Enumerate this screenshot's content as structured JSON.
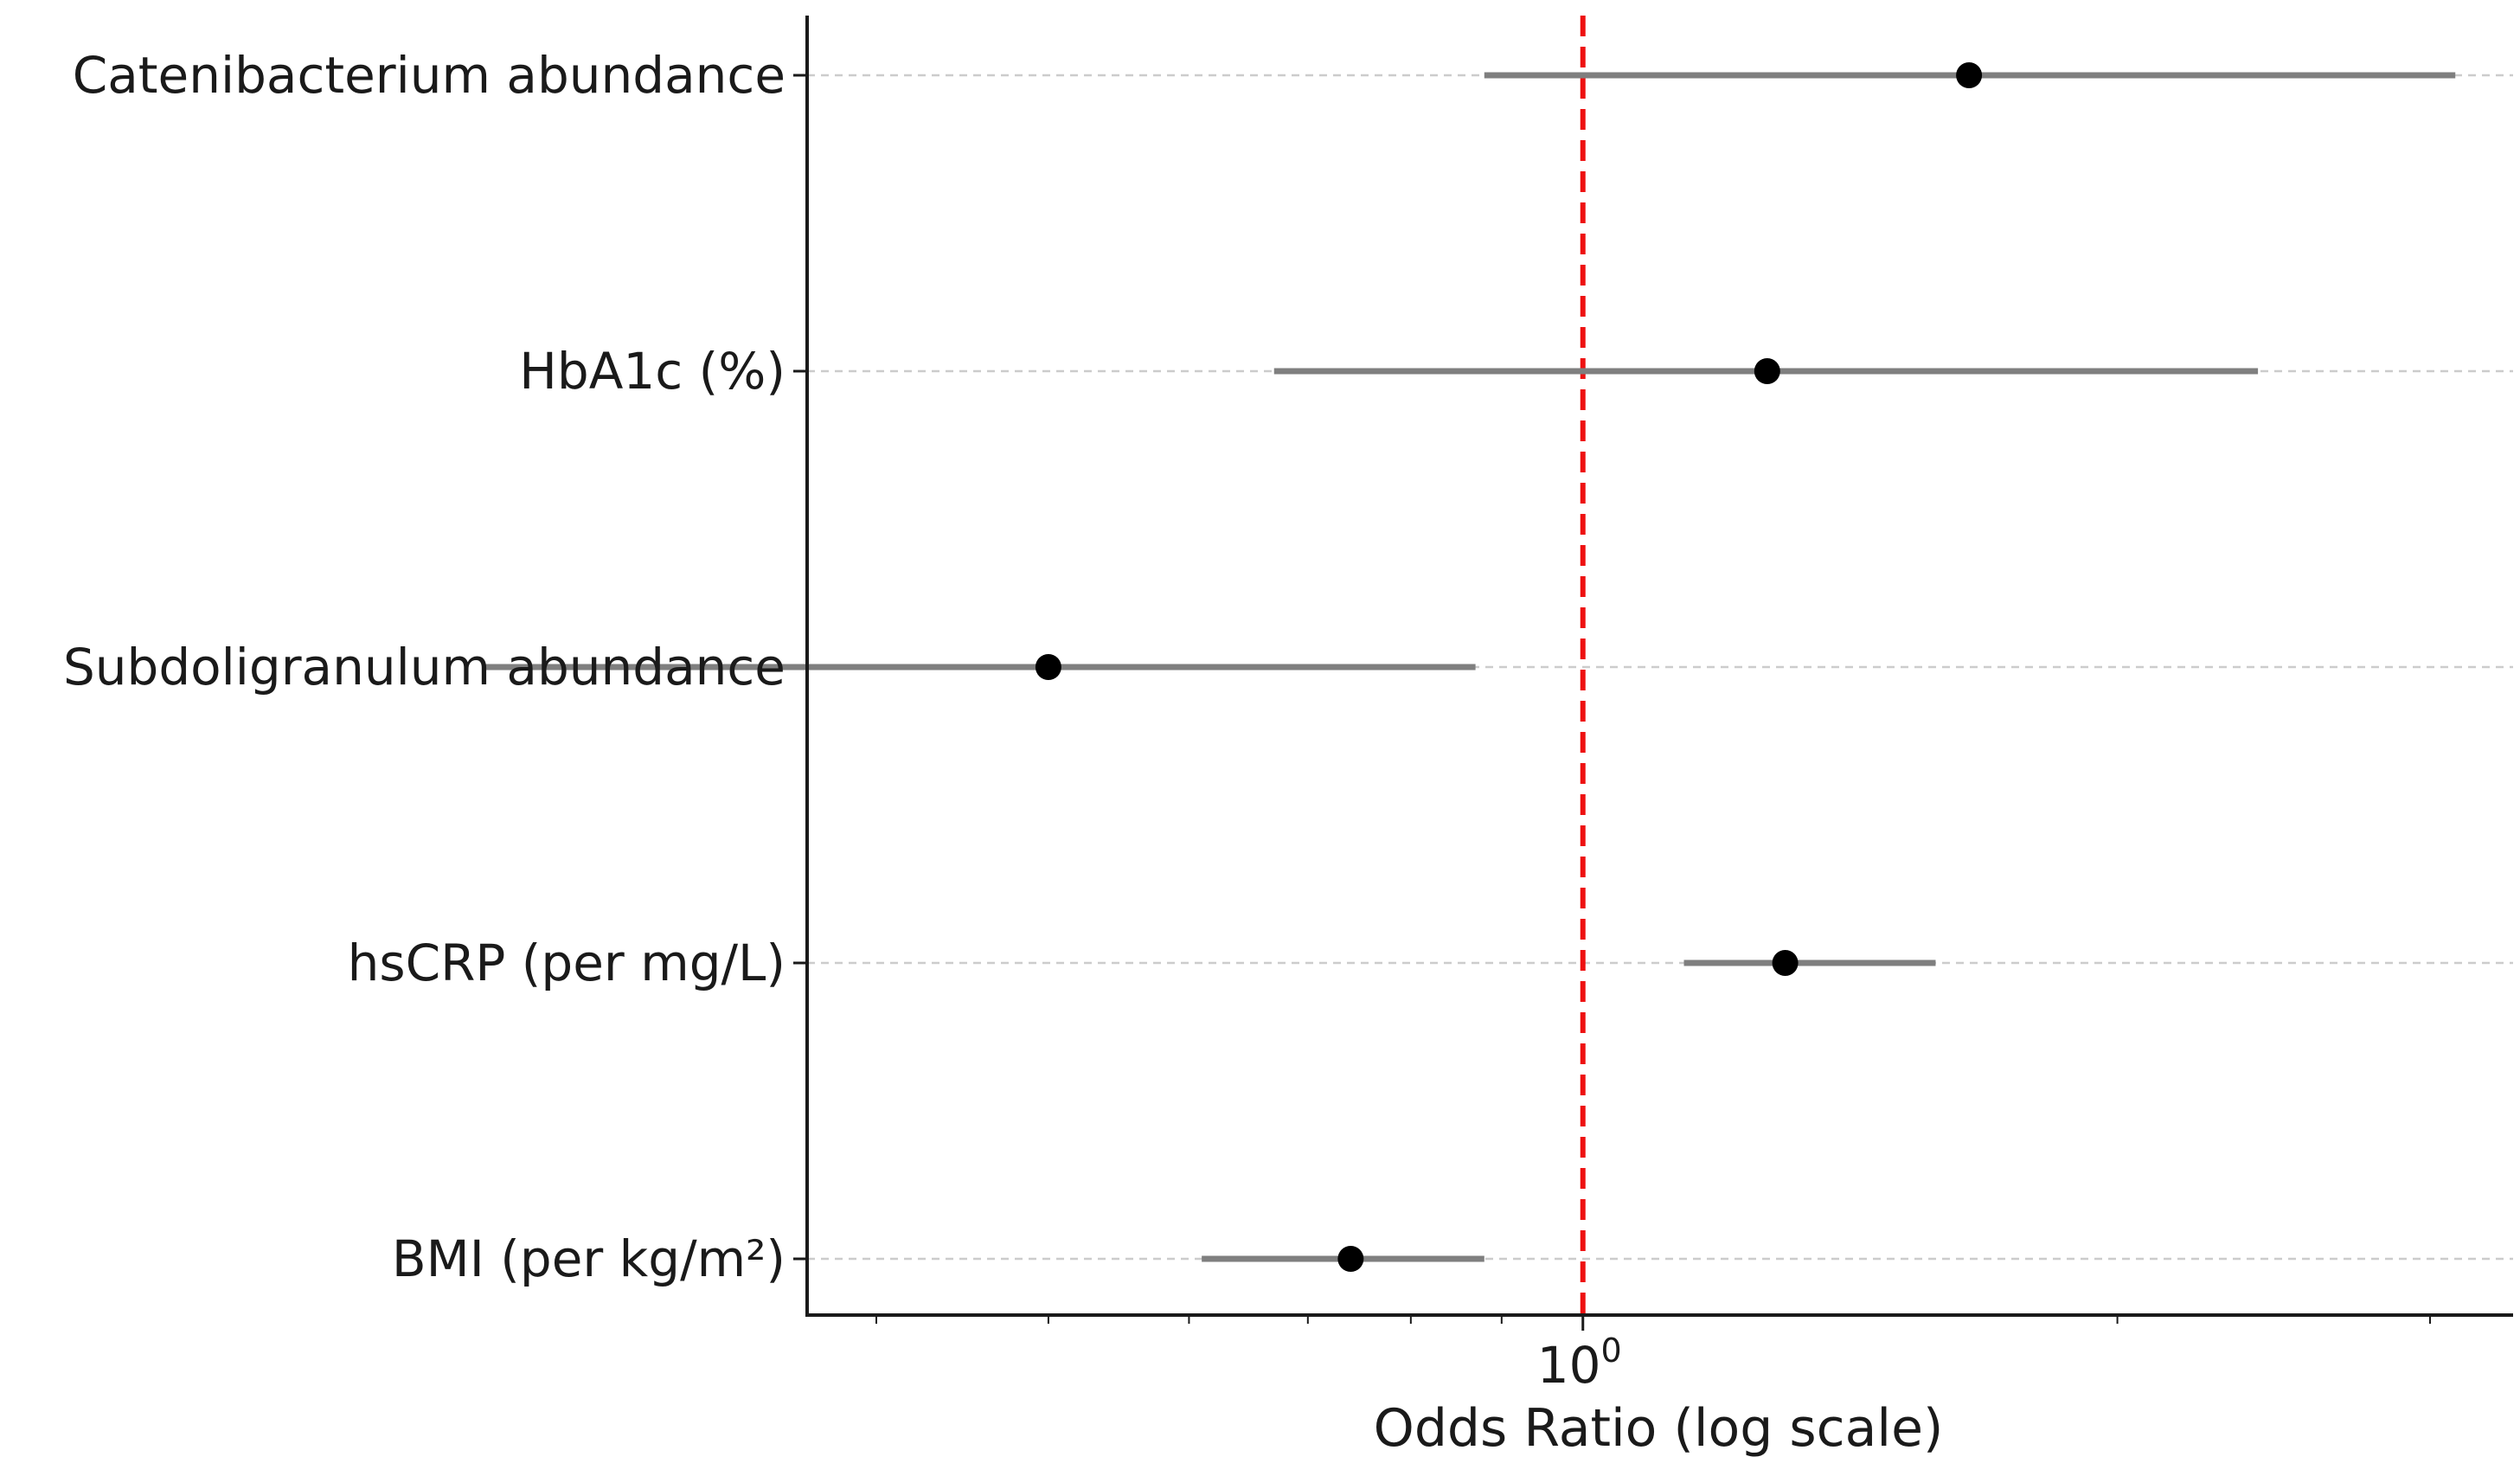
{
  "chart_data": {
    "type": "forest",
    "title": "",
    "xlabel": "Odds Ratio (log scale)",
    "ylabel": "",
    "xscale": "log",
    "xlim": [
      0.39,
      3.2
    ],
    "xticks": [
      {
        "value": 1,
        "base": "10",
        "exp": "0"
      }
    ],
    "reference_line": {
      "value": 1.0,
      "color": "#ee1111",
      "style": "dashed"
    },
    "grid": "horizontal dashed",
    "colors": {
      "ci": "#7f7f7f",
      "point": "#000000",
      "axis": "#1a1a1a",
      "grid": "#cccccc"
    },
    "rows": [
      {
        "label": "Catenibacterium abundance",
        "or": 1.65,
        "lo": 0.88,
        "hi": 3.1
      },
      {
        "label": "HbA1c (%)",
        "or": 1.27,
        "lo": 0.67,
        "hi": 2.4
      },
      {
        "label": "Subdoligranulum abundance",
        "or": 0.5,
        "lo": 0.24,
        "hi": 0.87
      },
      {
        "label": "hsCRP (per mg/L)",
        "or": 1.3,
        "lo": 1.14,
        "hi": 1.58
      },
      {
        "label": "BMI (per kg/m²)",
        "or": 0.74,
        "lo": 0.61,
        "hi": 0.88
      }
    ]
  }
}
